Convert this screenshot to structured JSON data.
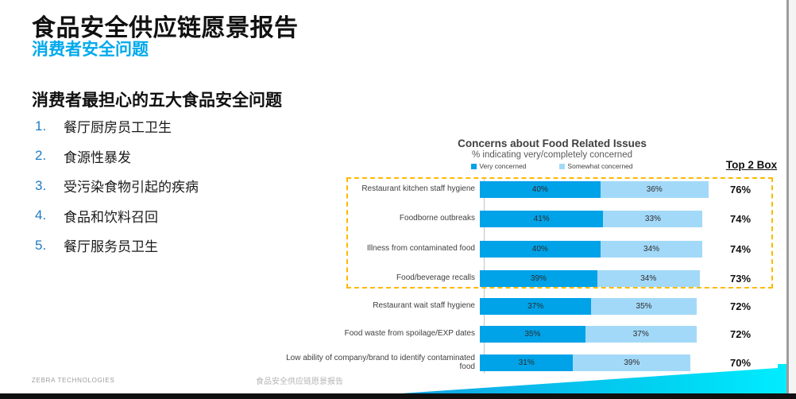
{
  "slide": {
    "title": "食品安全供应链愿景报告",
    "subtitle": "消费者安全问题",
    "heading": "消费者最担心的五大食品安全问题",
    "list": [
      "餐厅厨房员工卫生",
      "食源性暴发",
      "受污染食物引起的疾病",
      "食品和饮料召回",
      "餐厅服务员卫生"
    ]
  },
  "chart_data": {
    "type": "bar",
    "orientation": "horizontal-stacked",
    "title": "Concerns about Food Related Issues",
    "subtitle": "% indicating very/completely concerned",
    "top2box_label": "Top 2 Box",
    "categories": [
      "Restaurant kitchen staff hygiene",
      "Foodborne outbreaks",
      "Illness from contaminated food",
      "Food/beverage recalls",
      "Restaurant wait staff hygiene",
      "Food waste from spoilage/EXP dates",
      "Low ability of company/brand to identify contaminated food"
    ],
    "series": [
      {
        "name": "Very concerned",
        "color": "#00A2E8",
        "values": [
          40,
          41,
          40,
          39,
          37,
          35,
          31
        ]
      },
      {
        "name": "Somewhat concerned",
        "color": "#A3D9F8",
        "values": [
          36,
          33,
          34,
          34,
          35,
          37,
          39
        ]
      }
    ],
    "top2box": [
      76,
      74,
      74,
      73,
      72,
      72,
      70
    ],
    "highlighted_rows": 4,
    "xlim": [
      0,
      100
    ],
    "legend_position": "top",
    "grid": false,
    "highlight_border_color": "#FFB900"
  },
  "footer": {
    "left": "ZEBRA TECHNOLOGIES",
    "center": "食品安全供应链愿景报告"
  },
  "colors": {
    "subtitle_blue": "#00A9EC",
    "list_number_blue": "#1F7CC4",
    "very_concerned": "#00A2E8",
    "somewhat_concerned": "#A3D9F8",
    "highlight_dash": "#FFB900",
    "swoosh_gradient_start": "#13A0E3",
    "swoosh_gradient_end": "#00EDFF"
  }
}
